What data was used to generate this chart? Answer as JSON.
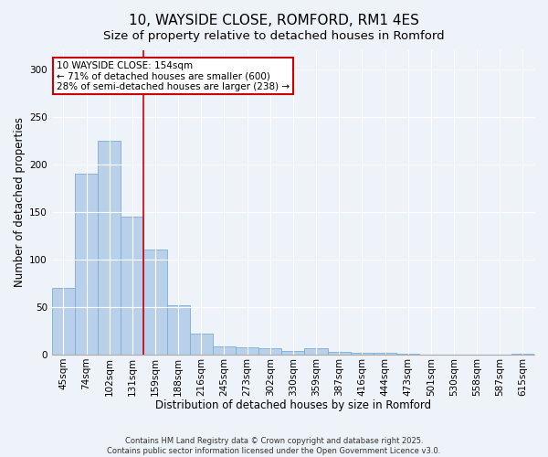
{
  "title1": "10, WAYSIDE CLOSE, ROMFORD, RM1 4ES",
  "title2": "Size of property relative to detached houses in Romford",
  "xlabel": "Distribution of detached houses by size in Romford",
  "ylabel": "Number of detached properties",
  "categories": [
    "45sqm",
    "74sqm",
    "102sqm",
    "131sqm",
    "159sqm",
    "188sqm",
    "216sqm",
    "245sqm",
    "273sqm",
    "302sqm",
    "330sqm",
    "359sqm",
    "387sqm",
    "416sqm",
    "444sqm",
    "473sqm",
    "501sqm",
    "530sqm",
    "558sqm",
    "587sqm",
    "615sqm"
  ],
  "values": [
    70,
    190,
    225,
    145,
    110,
    52,
    22,
    9,
    8,
    7,
    4,
    7,
    3,
    2,
    2,
    1,
    0,
    0,
    0,
    0,
    1
  ],
  "bar_color": "#b8d0ea",
  "bar_edge_color": "#7aadd4",
  "annotation_title": "10 WAYSIDE CLOSE: 154sqm",
  "annotation_line1": "← 71% of detached houses are smaller (600)",
  "annotation_line2": "28% of semi-detached houses are larger (238) →",
  "annotation_box_color": "#ffffff",
  "annotation_box_edge": "#cc0000",
  "redline_color": "#cc0000",
  "ylim": [
    0,
    320
  ],
  "yticks": [
    0,
    50,
    100,
    150,
    200,
    250,
    300
  ],
  "background_color": "#eef2f9",
  "footer1": "Contains HM Land Registry data © Crown copyright and database right 2025.",
  "footer2": "Contains public sector information licensed under the Open Government Licence v3.0.",
  "title_fontsize": 11,
  "subtitle_fontsize": 9.5,
  "axis_label_fontsize": 8.5,
  "tick_fontsize": 7.5,
  "footer_fontsize": 6,
  "annotation_fontsize": 7.5
}
